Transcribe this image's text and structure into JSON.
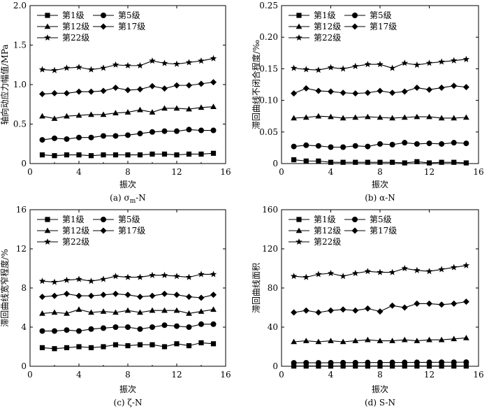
{
  "figure": {
    "panels": [
      {
        "caption": "(a) σm-N",
        "caption_main": "(a) σ",
        "caption_sub": "m",
        "caption_tail": "-N"
      },
      {
        "caption": "(b) α-N",
        "caption_main": "(b) α-N",
        "caption_sub": "",
        "caption_tail": ""
      },
      {
        "caption": "(c) ζ-N",
        "caption_main": "(c) ζ-N",
        "caption_sub": "",
        "caption_tail": ""
      },
      {
        "caption": "(d) S-N",
        "caption_main": "(d) S-N",
        "caption_sub": "",
        "caption_tail": ""
      }
    ]
  },
  "chart_data": [
    {
      "type": "line",
      "xlabel": "振次",
      "ylabel": "轴向动应力幅值/MPa",
      "xlim": [
        0,
        16
      ],
      "ylim": [
        0,
        2.0
      ],
      "xticks": [
        "0",
        "4",
        "8",
        "12",
        "16"
      ],
      "yticks": [
        "0",
        "0.5",
        "1.0",
        "1.5",
        "2.0"
      ],
      "x": [
        1,
        2,
        3,
        4,
        5,
        6,
        7,
        8,
        9,
        10,
        11,
        12,
        13,
        14,
        15
      ],
      "series": [
        {
          "name": "第1级",
          "marker": "square",
          "values": [
            0.11,
            0.1,
            0.11,
            0.11,
            0.1,
            0.11,
            0.11,
            0.11,
            0.11,
            0.12,
            0.12,
            0.11,
            0.12,
            0.12,
            0.13
          ]
        },
        {
          "name": "第5级",
          "marker": "circle",
          "values": [
            0.3,
            0.32,
            0.31,
            0.33,
            0.33,
            0.35,
            0.35,
            0.36,
            0.38,
            0.4,
            0.41,
            0.41,
            0.43,
            0.42,
            0.42
          ]
        },
        {
          "name": "第12级",
          "marker": "triangle",
          "values": [
            0.6,
            0.57,
            0.6,
            0.61,
            0.62,
            0.62,
            0.64,
            0.65,
            0.68,
            0.65,
            0.7,
            0.7,
            0.69,
            0.71,
            0.72
          ]
        },
        {
          "name": "第17级",
          "marker": "diamond",
          "values": [
            0.88,
            0.89,
            0.89,
            0.91,
            0.91,
            0.92,
            0.96,
            0.93,
            0.94,
            0.98,
            0.95,
            0.99,
            0.99,
            1.01,
            1.03
          ]
        },
        {
          "name": "第22级",
          "marker": "star",
          "values": [
            1.19,
            1.18,
            1.21,
            1.22,
            1.19,
            1.21,
            1.25,
            1.24,
            1.24,
            1.3,
            1.27,
            1.26,
            1.28,
            1.3,
            1.33
          ]
        }
      ]
    },
    {
      "type": "line",
      "xlabel": "振次",
      "ylabel": "滞回曲线不闭合程度/‰",
      "xlim": [
        0,
        16
      ],
      "ylim": [
        0,
        0.25
      ],
      "xticks": [
        "0",
        "4",
        "8",
        "12",
        "16"
      ],
      "yticks": [
        "0",
        "0.05",
        "0.10",
        "0.15",
        "0.20",
        "0.25"
      ],
      "x": [
        1,
        2,
        3,
        4,
        5,
        6,
        7,
        8,
        9,
        10,
        11,
        12,
        13,
        14,
        15
      ],
      "series": [
        {
          "name": "第1级",
          "marker": "square",
          "values": [
            0.006,
            0.004,
            0.004,
            0.002,
            0.002,
            0.002,
            0.002,
            0.002,
            0.002,
            0.001,
            0.003,
            0.001,
            0.002,
            0.002,
            0.001
          ]
        },
        {
          "name": "第5级",
          "marker": "circle",
          "values": [
            0.027,
            0.029,
            0.028,
            0.026,
            0.026,
            0.028,
            0.027,
            0.031,
            0.03,
            0.033,
            0.031,
            0.032,
            0.031,
            0.033,
            0.032
          ]
        },
        {
          "name": "第12级",
          "marker": "triangle",
          "values": [
            0.072,
            0.073,
            0.075,
            0.074,
            0.072,
            0.073,
            0.074,
            0.073,
            0.072,
            0.073,
            0.074,
            0.074,
            0.072,
            0.072,
            0.073
          ]
        },
        {
          "name": "第17级",
          "marker": "diamond",
          "values": [
            0.111,
            0.119,
            0.115,
            0.114,
            0.112,
            0.111,
            0.112,
            0.115,
            0.112,
            0.114,
            0.12,
            0.117,
            0.12,
            0.123,
            0.121
          ]
        },
        {
          "name": "第22级",
          "marker": "star",
          "values": [
            0.151,
            0.149,
            0.148,
            0.152,
            0.15,
            0.154,
            0.157,
            0.157,
            0.151,
            0.159,
            0.156,
            0.159,
            0.161,
            0.163,
            0.165
          ]
        }
      ]
    },
    {
      "type": "line",
      "xlabel": "振次",
      "ylabel": "滞回曲线宽窄程度/%",
      "xlim": [
        0,
        16
      ],
      "ylim": [
        0,
        16
      ],
      "xticks": [
        "0",
        "4",
        "8",
        "12",
        "16"
      ],
      "yticks": [
        "0",
        "4",
        "8",
        "12",
        "16"
      ],
      "x": [
        1,
        2,
        3,
        4,
        5,
        6,
        7,
        8,
        9,
        10,
        11,
        12,
        13,
        14,
        15
      ],
      "series": [
        {
          "name": "第1级",
          "marker": "square",
          "values": [
            1.9,
            1.8,
            1.9,
            2.0,
            1.9,
            2.0,
            2.2,
            2.1,
            2.2,
            2.2,
            2.0,
            2.3,
            2.1,
            2.4,
            2.3
          ]
        },
        {
          "name": "第5级",
          "marker": "circle",
          "values": [
            3.6,
            3.6,
            3.7,
            3.6,
            3.8,
            3.9,
            4.0,
            4.0,
            3.8,
            4.0,
            4.2,
            4.1,
            4.0,
            4.3,
            4.3
          ]
        },
        {
          "name": "第12级",
          "marker": "triangle",
          "values": [
            5.4,
            5.5,
            5.4,
            5.8,
            5.5,
            5.6,
            5.5,
            5.7,
            5.5,
            5.7,
            5.7,
            5.7,
            5.4,
            5.6,
            5.8
          ]
        },
        {
          "name": "第17级",
          "marker": "diamond",
          "values": [
            7.1,
            7.2,
            7.4,
            7.2,
            7.2,
            7.3,
            7.4,
            7.3,
            7.1,
            7.2,
            7.4,
            7.3,
            7.1,
            7.0,
            7.3
          ]
        },
        {
          "name": "第22级",
          "marker": "star",
          "values": [
            8.7,
            8.6,
            8.8,
            8.9,
            8.7,
            8.9,
            9.2,
            9.1,
            9.1,
            9.3,
            9.3,
            9.2,
            9.1,
            9.4,
            9.4
          ]
        }
      ]
    },
    {
      "type": "line",
      "xlabel": "振次",
      "ylabel": "滞回曲线面积",
      "xlim": [
        0,
        16
      ],
      "ylim": [
        0,
        160
      ],
      "xticks": [
        "0",
        "4",
        "8",
        "12",
        "16"
      ],
      "yticks": [
        "0",
        "40",
        "80",
        "120",
        "160"
      ],
      "x": [
        1,
        2,
        3,
        4,
        5,
        6,
        7,
        8,
        9,
        10,
        11,
        12,
        13,
        14,
        15
      ],
      "series": [
        {
          "name": "第1级",
          "marker": "square",
          "values": [
            0.2,
            0.2,
            0.2,
            0.2,
            0.2,
            0.2,
            0.2,
            0.2,
            0.2,
            0.2,
            0.2,
            0.2,
            0.2,
            0.2,
            0.2
          ]
        },
        {
          "name": "第5级",
          "marker": "circle",
          "values": [
            3.5,
            3.6,
            3.5,
            3.6,
            3.7,
            3.7,
            3.8,
            3.8,
            3.9,
            3.9,
            4.0,
            4.0,
            4.1,
            4.1,
            4.2
          ]
        },
        {
          "name": "第12级",
          "marker": "triangle",
          "values": [
            25,
            26,
            25,
            26,
            25,
            26,
            27,
            26,
            26,
            27,
            26,
            27,
            27,
            28,
            29
          ]
        },
        {
          "name": "第17级",
          "marker": "diamond",
          "values": [
            55,
            57,
            55,
            57,
            58,
            57,
            59,
            56,
            62,
            60,
            64,
            64,
            63,
            64,
            66
          ]
        },
        {
          "name": "第22级",
          "marker": "star",
          "values": [
            92,
            91,
            94,
            95,
            92,
            95,
            97,
            96,
            96,
            100,
            98,
            97,
            99,
            101,
            103
          ]
        }
      ]
    }
  ]
}
